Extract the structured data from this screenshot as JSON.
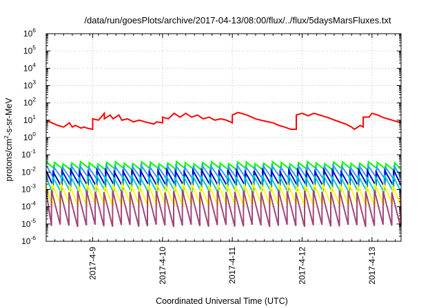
{
  "chart_data": {
    "type": "line",
    "title": "/data/run/goesPlots/archive/2017-04-13/08:00/flux/../flux/5daysMarsFluxes.txt",
    "xlabel": "Coordinated Universal Time (UTC)",
    "ylabel_parts": [
      "protons/cm",
      "2",
      "-s-sr-MeV"
    ],
    "y_scale": "log",
    "ylim": [
      1e-06,
      1000000.0
    ],
    "y_ticks": [
      {
        "base": "10",
        "exp": "-6",
        "value": 1e-06
      },
      {
        "base": "10",
        "exp": "-5",
        "value": 1e-05
      },
      {
        "base": "10",
        "exp": "-4",
        "value": 0.0001
      },
      {
        "base": "10",
        "exp": "-3",
        "value": 0.001
      },
      {
        "base": "10",
        "exp": "-2",
        "value": 0.01
      },
      {
        "base": "10",
        "exp": "-1",
        "value": 0.1
      },
      {
        "base": "10",
        "exp": "0",
        "value": 1
      },
      {
        "base": "10",
        "exp": "1",
        "value": 10
      },
      {
        "base": "10",
        "exp": "2",
        "value": 100
      },
      {
        "base": "10",
        "exp": "3",
        "value": 1000
      },
      {
        "base": "10",
        "exp": "4",
        "value": 10000
      },
      {
        "base": "10",
        "exp": "5",
        "value": 100000
      },
      {
        "base": "10",
        "exp": "6",
        "value": 1000000
      }
    ],
    "xlim": [
      "2017-04-08T08:00",
      "2017-04-13T10:00"
    ],
    "x_ticks": [
      {
        "label": "2017-4-9",
        "value": "2017-04-09T00:00"
      },
      {
        "label": "2017-4-10",
        "value": "2017-04-10T00:00"
      },
      {
        "label": "2017-4-11",
        "value": "2017-04-11T00:00"
      },
      {
        "label": "2017-4-12",
        "value": "2017-04-12T00:00"
      },
      {
        "label": "2017-4-13",
        "value": "2017-04-13T00:00"
      }
    ],
    "grid": true,
    "legend": "none",
    "series": [
      {
        "color": "#ff0000",
        "x": [
          "2017-04-08T08:00",
          "2017-04-08T10:00",
          "2017-04-08T12:00",
          "2017-04-08T14:00",
          "2017-04-08T16:00",
          "2017-04-08T17:00",
          "2017-04-08T18:00",
          "2017-04-08T20:00",
          "2017-04-08T21:00",
          "2017-04-08T22:00",
          "2017-04-09T00:00",
          "2017-04-09T00:00",
          "2017-04-09T02:00",
          "2017-04-09T04:00",
          "2017-04-09T04:00",
          "2017-04-09T06:00",
          "2017-04-09T07:00",
          "2017-04-09T09:00",
          "2017-04-09T10:00",
          "2017-04-09T12:00",
          "2017-04-09T14:00",
          "2017-04-09T16:00",
          "2017-04-09T18:00",
          "2017-04-09T21:00",
          "2017-04-09T22:00",
          "2017-04-10T00:00",
          "2017-04-10T00:00",
          "2017-04-10T02:00",
          "2017-04-10T04:00",
          "2017-04-10T06:00",
          "2017-04-10T08:00",
          "2017-04-10T10:00",
          "2017-04-10T12:00",
          "2017-04-10T14:00",
          "2017-04-10T16:00",
          "2017-04-10T18:00",
          "2017-04-10T20:00",
          "2017-04-10T22:00",
          "2017-04-11T00:00",
          "2017-04-11T00:00",
          "2017-04-11T02:00",
          "2017-04-11T05:00",
          "2017-04-11T08:00",
          "2017-04-11T11:00",
          "2017-04-11T14:00",
          "2017-04-11T16:00",
          "2017-04-11T18:00",
          "2017-04-11T20:00",
          "2017-04-11T22:00",
          "2017-04-11T22:00",
          "2017-04-12T00:00",
          "2017-04-12T02:00",
          "2017-04-12T04:00",
          "2017-04-12T06:00",
          "2017-04-12T09:00",
          "2017-04-12T12:00",
          "2017-04-12T15:00",
          "2017-04-12T17:00",
          "2017-04-12T18:00",
          "2017-04-12T20:00",
          "2017-04-12T21:00",
          "2017-04-12T21:00",
          "2017-04-12T23:00",
          "2017-04-13T00:00",
          "2017-04-13T02:00",
          "2017-04-13T04:00",
          "2017-04-13T07:00",
          "2017-04-13T10:00"
        ],
        "y": [
          10,
          7,
          5,
          4,
          7,
          4,
          5,
          3.5,
          4,
          3.5,
          3,
          12,
          10,
          25,
          12,
          20,
          12,
          20,
          10,
          12,
          8,
          10,
          8,
          6,
          8,
          7,
          15,
          12,
          25,
          15,
          25,
          15,
          20,
          12,
          15,
          10,
          12,
          10,
          7,
          20,
          28,
          20,
          12,
          9,
          7,
          5,
          4,
          3,
          3,
          20,
          25,
          18,
          25,
          20,
          14,
          9,
          6,
          4,
          3,
          5,
          4,
          15,
          15,
          25,
          20,
          14,
          10,
          7
        ]
      },
      {
        "color": "#00ff00",
        "pattern": "sawtooth",
        "peak": 0.035,
        "trough": 0.014
      },
      {
        "color": "#3399ff",
        "pattern": "sawtooth",
        "peak": 0.022,
        "trough": 0.004
      },
      {
        "color": "#0000cc",
        "pattern": "sawtooth",
        "peak": 0.012,
        "trough": 0.0015
      },
      {
        "color": "#00cccc",
        "pattern": "sawtooth",
        "peak": 0.006,
        "trough": 0.0007
      },
      {
        "color": "#ffff00",
        "pattern": "sawtooth",
        "peak": 0.002,
        "trough": 0.00012
      },
      {
        "color": "#a0447a",
        "pattern": "sawtooth",
        "peak": 0.0008,
        "trough": 8e-06
      }
    ]
  }
}
